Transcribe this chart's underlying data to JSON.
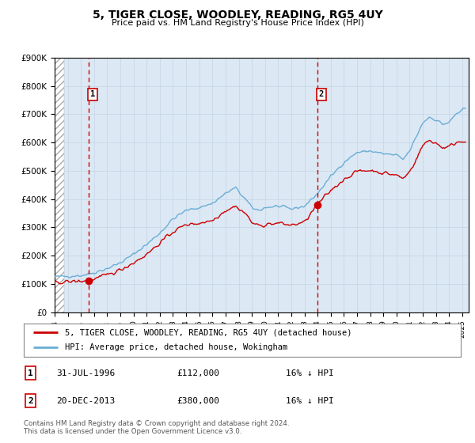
{
  "title": "5, TIGER CLOSE, WOODLEY, READING, RG5 4UY",
  "subtitle": "Price paid vs. HM Land Registry's House Price Index (HPI)",
  "legend_line1": "5, TIGER CLOSE, WOODLEY, READING, RG5 4UY (detached house)",
  "legend_line2": "HPI: Average price, detached house, Wokingham",
  "annotation1": {
    "label": "1",
    "date_str": "31-JUL-1996",
    "price": 112000,
    "hpi_pct": "16% ↓ HPI"
  },
  "annotation2": {
    "label": "2",
    "date_str": "20-DEC-2013",
    "price": 380000,
    "hpi_pct": "16% ↓ HPI"
  },
  "footer": "Contains HM Land Registry data © Crown copyright and database right 2024.\nThis data is licensed under the Open Government Licence v3.0.",
  "hpi_color": "#6aaed6",
  "price_color": "#cc0000",
  "marker_color": "#cc0000",
  "vline_color": "#cc0000",
  "grid_color": "#c8d8e8",
  "bg_color": "#dce8f4",
  "ylim": [
    0,
    900000
  ],
  "yticks": [
    0,
    100000,
    200000,
    300000,
    400000,
    500000,
    600000,
    700000,
    800000,
    900000
  ],
  "xlim_start": 1994.0,
  "xlim_end": 2025.5,
  "xticks": [
    1994,
    1995,
    1996,
    1997,
    1998,
    1999,
    2000,
    2001,
    2002,
    2003,
    2004,
    2005,
    2006,
    2007,
    2008,
    2009,
    2010,
    2011,
    2012,
    2013,
    2014,
    2015,
    2016,
    2017,
    2018,
    2019,
    2020,
    2021,
    2022,
    2023,
    2024,
    2025
  ],
  "sale1_x": 1996.58,
  "sale1_y": 112000,
  "sale2_x": 2013.97,
  "sale2_y": 380000
}
